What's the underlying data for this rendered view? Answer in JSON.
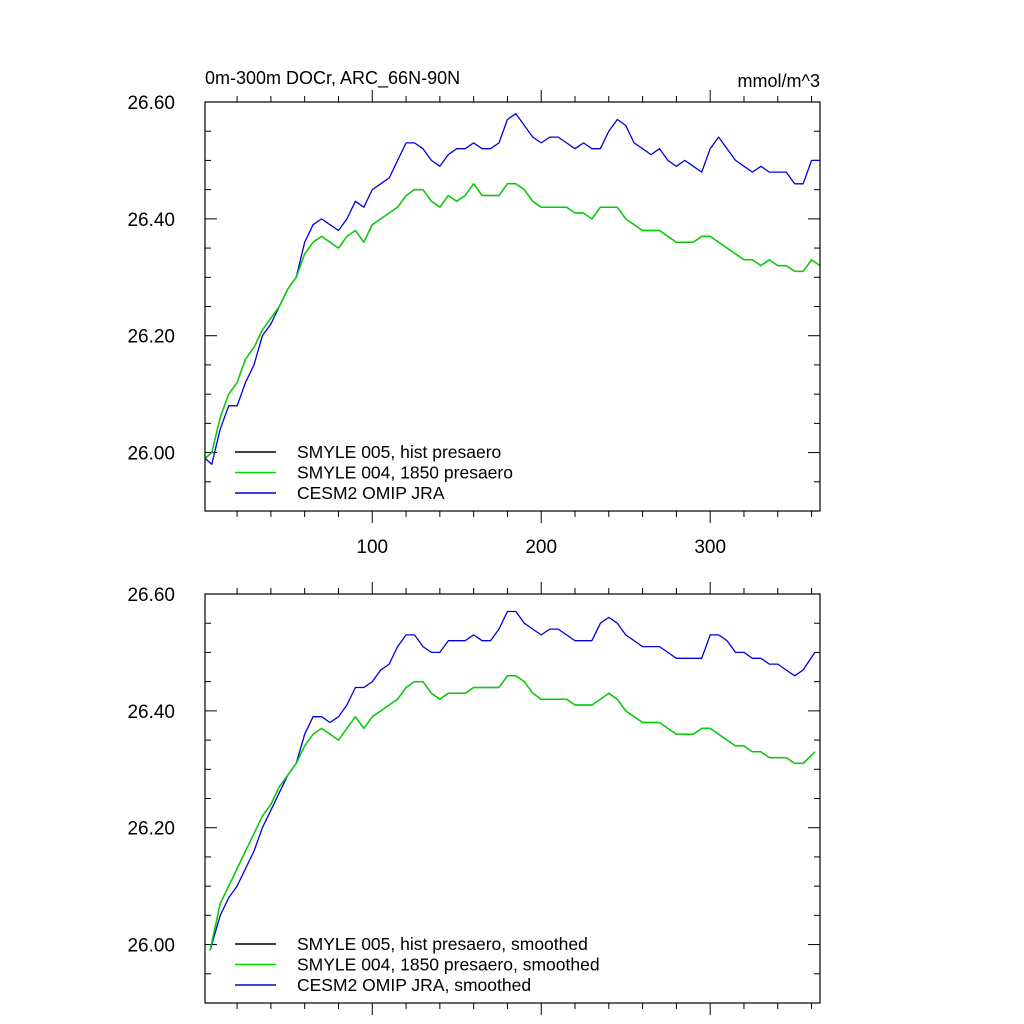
{
  "chart_data": [
    {
      "type": "line",
      "panel": "top",
      "title_left": "0m-300m DOCr, ARC_66N-90N",
      "title_right": "mmol/m^3",
      "xlabel": "",
      "ylabel": "",
      "xlim": [
        1,
        365
      ],
      "ylim": [
        25.9,
        26.6
      ],
      "x_ticks": [
        100,
        200,
        300
      ],
      "x_tick_labels": [
        "100",
        "200",
        "300"
      ],
      "y_ticks": [
        26.0,
        26.2,
        26.4,
        26.6
      ],
      "y_tick_labels": [
        "26.00",
        "26.20",
        "26.40",
        "26.60"
      ],
      "legend_position": "bottom-left",
      "x": [
        1,
        5,
        10,
        15,
        20,
        25,
        30,
        35,
        40,
        45,
        50,
        55,
        60,
        65,
        70,
        75,
        80,
        85,
        90,
        95,
        100,
        105,
        110,
        115,
        120,
        125,
        130,
        135,
        140,
        145,
        150,
        155,
        160,
        165,
        170,
        175,
        180,
        185,
        190,
        195,
        200,
        205,
        210,
        215,
        220,
        225,
        230,
        235,
        240,
        245,
        250,
        255,
        260,
        265,
        270,
        275,
        280,
        285,
        290,
        295,
        300,
        305,
        310,
        315,
        320,
        325,
        330,
        335,
        340,
        345,
        350,
        355,
        360,
        365
      ],
      "series": [
        {
          "name": "SMYLE 005, hist presaero",
          "color": "#000000",
          "values": [
            25.99,
            26.0,
            26.06,
            26.1,
            26.12,
            26.16,
            26.18,
            26.21,
            26.23,
            26.25,
            26.28,
            26.3,
            26.34,
            26.36,
            26.37,
            26.36,
            26.35,
            26.37,
            26.38,
            26.36,
            26.39,
            26.4,
            26.41,
            26.42,
            26.44,
            26.45,
            26.45,
            26.43,
            26.42,
            26.44,
            26.43,
            26.44,
            26.46,
            26.44,
            26.44,
            26.44,
            26.46,
            26.46,
            26.45,
            26.43,
            26.42,
            26.42,
            26.42,
            26.42,
            26.41,
            26.41,
            26.4,
            26.42,
            26.42,
            26.42,
            26.4,
            26.39,
            26.38,
            26.38,
            26.38,
            26.37,
            26.36,
            26.36,
            26.36,
            26.37,
            26.37,
            26.36,
            26.35,
            26.34,
            26.33,
            26.33,
            26.32,
            26.33,
            26.32,
            26.32,
            26.31,
            26.31,
            26.33,
            26.32
          ]
        },
        {
          "name": "SMYLE 004, 1850 presaero",
          "color": "#00d800",
          "values": [
            25.99,
            26.0,
            26.06,
            26.1,
            26.12,
            26.16,
            26.18,
            26.21,
            26.23,
            26.25,
            26.28,
            26.3,
            26.34,
            26.36,
            26.37,
            26.36,
            26.35,
            26.37,
            26.38,
            26.36,
            26.39,
            26.4,
            26.41,
            26.42,
            26.44,
            26.45,
            26.45,
            26.43,
            26.42,
            26.44,
            26.43,
            26.44,
            26.46,
            26.44,
            26.44,
            26.44,
            26.46,
            26.46,
            26.45,
            26.43,
            26.42,
            26.42,
            26.42,
            26.42,
            26.41,
            26.41,
            26.4,
            26.42,
            26.42,
            26.42,
            26.4,
            26.39,
            26.38,
            26.38,
            26.38,
            26.37,
            26.36,
            26.36,
            26.36,
            26.37,
            26.37,
            26.36,
            26.35,
            26.34,
            26.33,
            26.33,
            26.32,
            26.33,
            26.32,
            26.32,
            26.31,
            26.31,
            26.33,
            26.32
          ]
        },
        {
          "name": "CESM2 OMIP JRA",
          "color": "#0000e0",
          "values": [
            25.99,
            25.98,
            26.04,
            26.08,
            26.08,
            26.12,
            26.15,
            26.2,
            26.22,
            26.25,
            26.28,
            26.3,
            26.36,
            26.39,
            26.4,
            26.39,
            26.38,
            26.4,
            26.43,
            26.42,
            26.45,
            26.46,
            26.47,
            26.5,
            26.53,
            26.53,
            26.52,
            26.5,
            26.49,
            26.51,
            26.52,
            26.52,
            26.53,
            26.52,
            26.52,
            26.53,
            26.57,
            26.58,
            26.56,
            26.54,
            26.53,
            26.54,
            26.54,
            26.53,
            26.52,
            26.53,
            26.52,
            26.52,
            26.55,
            26.57,
            26.56,
            26.53,
            26.52,
            26.51,
            26.52,
            26.5,
            26.49,
            26.5,
            26.49,
            26.48,
            26.52,
            26.54,
            26.52,
            26.5,
            26.49,
            26.48,
            26.49,
            26.48,
            26.48,
            26.48,
            26.46,
            26.46,
            26.5,
            26.5
          ]
        }
      ]
    },
    {
      "type": "line",
      "panel": "bottom",
      "xlabel": "",
      "ylabel": "",
      "xlim": [
        1,
        365
      ],
      "ylim": [
        25.9,
        26.6
      ],
      "x_ticks": [
        100,
        200,
        300
      ],
      "y_ticks": [
        26.0,
        26.2,
        26.4,
        26.6
      ],
      "y_tick_labels": [
        "26.00",
        "26.20",
        "26.40",
        "26.60"
      ],
      "legend_position": "bottom-left",
      "x": [
        4,
        10,
        15,
        20,
        25,
        30,
        35,
        40,
        45,
        50,
        55,
        60,
        65,
        70,
        75,
        80,
        85,
        90,
        95,
        100,
        105,
        110,
        115,
        120,
        125,
        130,
        135,
        140,
        145,
        150,
        155,
        160,
        165,
        170,
        175,
        180,
        185,
        190,
        195,
        200,
        205,
        210,
        215,
        220,
        225,
        230,
        235,
        240,
        245,
        250,
        255,
        260,
        265,
        270,
        275,
        280,
        285,
        290,
        295,
        300,
        305,
        310,
        315,
        320,
        325,
        330,
        335,
        340,
        345,
        350,
        355,
        362
      ],
      "series": [
        {
          "name": "SMYLE 005, hist presaero, smoothed",
          "color": "#000000",
          "values": [
            25.99,
            26.07,
            26.1,
            26.13,
            26.16,
            26.19,
            26.22,
            26.24,
            26.27,
            26.29,
            26.31,
            26.34,
            26.36,
            26.37,
            26.36,
            26.35,
            26.37,
            26.39,
            26.37,
            26.39,
            26.4,
            26.41,
            26.42,
            26.44,
            26.45,
            26.45,
            26.43,
            26.42,
            26.43,
            26.43,
            26.43,
            26.44,
            26.44,
            26.44,
            26.44,
            26.46,
            26.46,
            26.45,
            26.43,
            26.42,
            26.42,
            26.42,
            26.42,
            26.41,
            26.41,
            26.41,
            26.42,
            26.43,
            26.42,
            26.4,
            26.39,
            26.38,
            26.38,
            26.38,
            26.37,
            26.36,
            26.36,
            26.36,
            26.37,
            26.37,
            26.36,
            26.35,
            26.34,
            26.34,
            26.33,
            26.33,
            26.32,
            26.32,
            26.32,
            26.31,
            26.31,
            26.33
          ]
        },
        {
          "name": "SMYLE 004, 1850 presaero, smoothed",
          "color": "#00d800",
          "values": [
            25.99,
            26.07,
            26.1,
            26.13,
            26.16,
            26.19,
            26.22,
            26.24,
            26.27,
            26.29,
            26.31,
            26.34,
            26.36,
            26.37,
            26.36,
            26.35,
            26.37,
            26.39,
            26.37,
            26.39,
            26.4,
            26.41,
            26.42,
            26.44,
            26.45,
            26.45,
            26.43,
            26.42,
            26.43,
            26.43,
            26.43,
            26.44,
            26.44,
            26.44,
            26.44,
            26.46,
            26.46,
            26.45,
            26.43,
            26.42,
            26.42,
            26.42,
            26.42,
            26.41,
            26.41,
            26.41,
            26.42,
            26.43,
            26.42,
            26.4,
            26.39,
            26.38,
            26.38,
            26.38,
            26.37,
            26.36,
            26.36,
            26.36,
            26.37,
            26.37,
            26.36,
            26.35,
            26.34,
            26.34,
            26.33,
            26.33,
            26.32,
            26.32,
            26.32,
            26.31,
            26.31,
            26.33
          ]
        },
        {
          "name": "CESM2 OMIP JRA, smoothed",
          "color": "#0000e0",
          "values": [
            25.99,
            26.05,
            26.08,
            26.1,
            26.13,
            26.16,
            26.2,
            26.23,
            26.26,
            26.29,
            26.31,
            26.36,
            26.39,
            26.39,
            26.38,
            26.39,
            26.41,
            26.44,
            26.44,
            26.45,
            26.47,
            26.48,
            26.51,
            26.53,
            26.53,
            26.51,
            26.5,
            26.5,
            26.52,
            26.52,
            26.52,
            26.53,
            26.52,
            26.52,
            26.54,
            26.57,
            26.57,
            26.55,
            26.54,
            26.53,
            26.54,
            26.54,
            26.53,
            26.52,
            26.52,
            26.52,
            26.55,
            26.56,
            26.55,
            26.53,
            26.52,
            26.51,
            26.51,
            26.51,
            26.5,
            26.49,
            26.49,
            26.49,
            26.49,
            26.53,
            26.53,
            26.52,
            26.5,
            26.5,
            26.49,
            26.49,
            26.48,
            26.48,
            26.47,
            26.46,
            26.47,
            26.5
          ]
        }
      ]
    }
  ]
}
